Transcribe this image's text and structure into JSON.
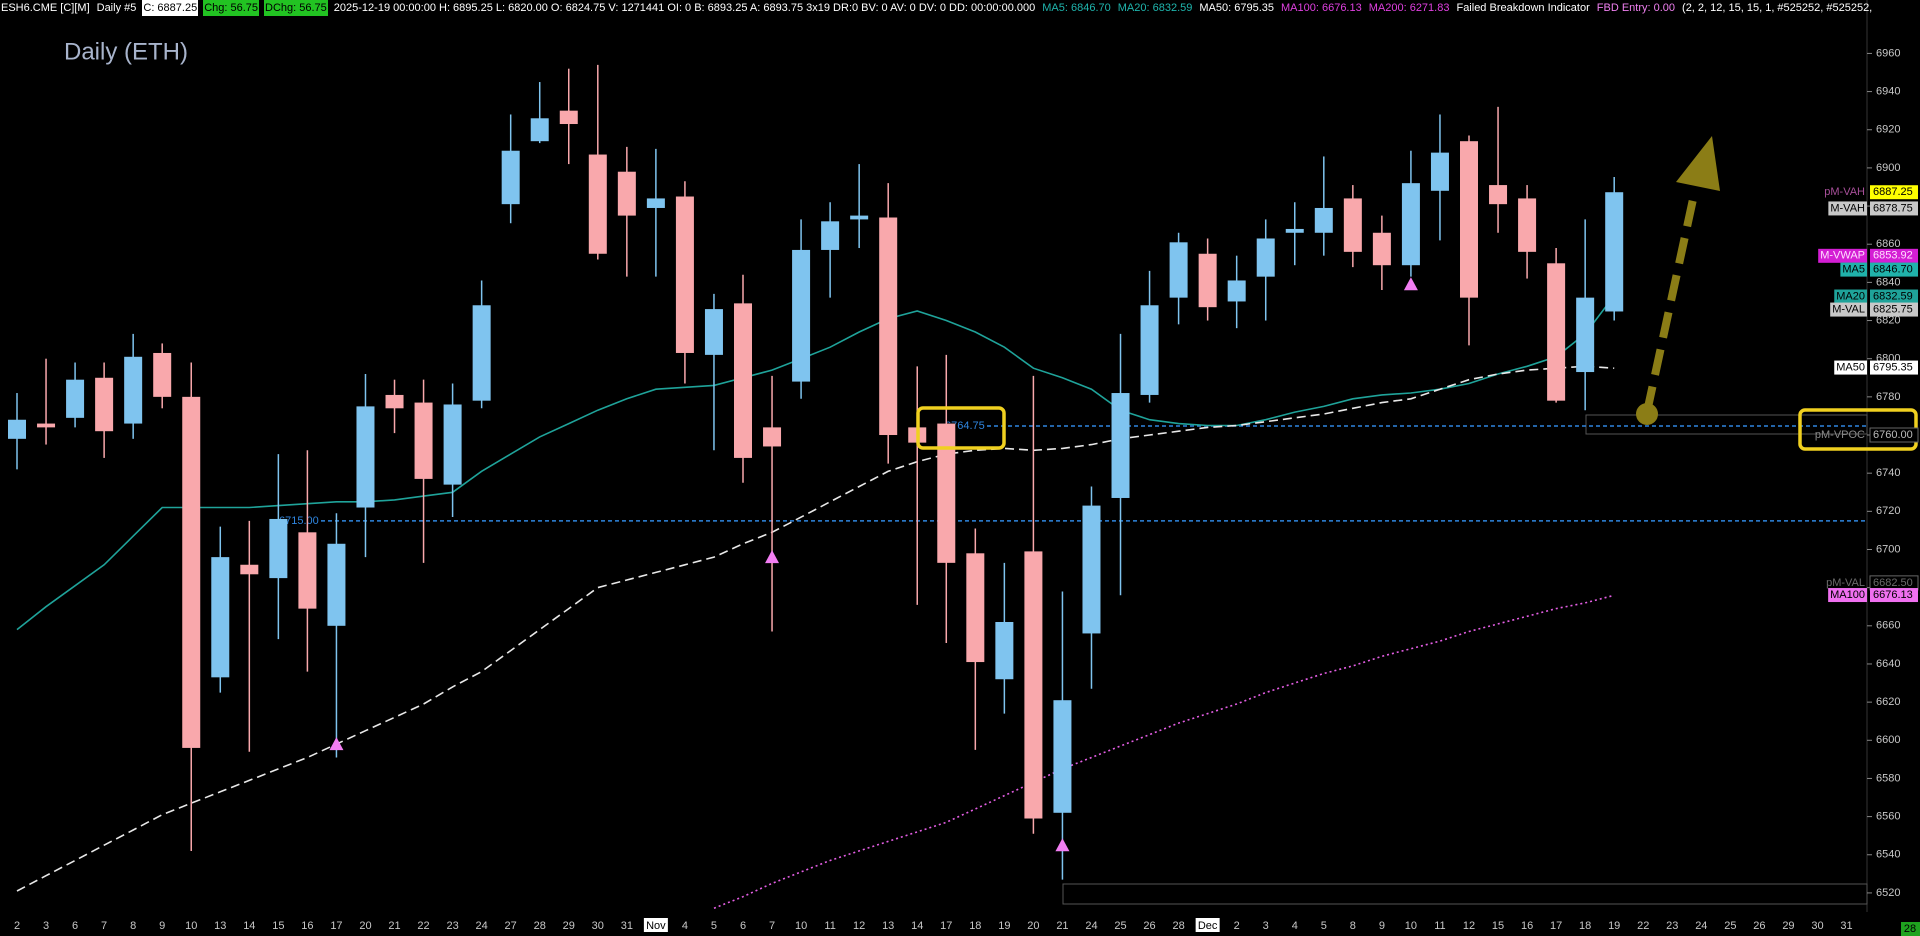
{
  "header": [
    {
      "text": "ESH6.CME [C][M]",
      "color": "#ffffff"
    },
    {
      "text": "Daily #5",
      "color": "#ffffff"
    },
    {
      "text": "C: 6887.25",
      "color": "#000000",
      "background": "#ffffff"
    },
    {
      "text": "Chg: 56.75",
      "color": "#000000",
      "background": "#22c322"
    },
    {
      "text": "DChg: 56.75",
      "color": "#000000",
      "background": "#22c322"
    },
    {
      "text": "2025-12-19 00:00:00 H: 6895.25 L: 6820.00 O: 6824.75 V: 1271441 OI: 0 B: 6893.25 A: 6893.75 3x19 DR:0 BV: 0 AV: 0 DV: 0 DD: 00:00:00.000",
      "color": "#ffffff"
    },
    {
      "text": "MA5: 6846.70",
      "color": "#1fb5ad"
    },
    {
      "text": "MA20: 6832.59",
      "color": "#1fb5ad"
    },
    {
      "text": "MA50: 6795.35",
      "color": "#ffffff"
    },
    {
      "text": "MA100: 6676.13",
      "color": "#e040e0"
    },
    {
      "text": "MA200: 6271.83",
      "color": "#e040e0"
    },
    {
      "text": "Failed Breakdown Indicator",
      "color": "#ffffff"
    },
    {
      "text": "FBD Entry: 0.00",
      "color": "#f080f0"
    },
    {
      "text": "(2, 2, 12, 15, 15, 1, #525252, #525252,",
      "color": "#ffffff"
    }
  ],
  "corner_label": "28",
  "chart_data": {
    "type": "candlestick",
    "title": "Daily (ETH)",
    "categories": [
      "2",
      "3",
      "6",
      "7",
      "8",
      "9",
      "10",
      "13",
      "14",
      "15",
      "16",
      "17",
      "20",
      "21",
      "22",
      "23",
      "24",
      "27",
      "28",
      "29",
      "30",
      "31",
      "Nov",
      "4",
      "5",
      "6",
      "7",
      "10",
      "11",
      "12",
      "13",
      "14",
      "17",
      "18",
      "19",
      "20",
      "21",
      "24",
      "25",
      "26",
      "28",
      "Dec",
      "2",
      "3",
      "4",
      "5",
      "8",
      "9",
      "10",
      "11",
      "12",
      "15",
      "16",
      "17",
      "18",
      "19",
      "22",
      "23",
      "24",
      "25",
      "26",
      "29",
      "30",
      "31"
    ],
    "open": [
      6758,
      6766,
      6769,
      6790,
      6766,
      6803,
      6780,
      6633,
      6692,
      6685,
      6709,
      6660,
      6722,
      6781,
      6777,
      6734,
      6778,
      6881,
      6914,
      6930,
      6907,
      6898,
      6879,
      6885,
      6802,
      6829,
      6764,
      6788,
      6857,
      6873,
      6874,
      6764,
      6766,
      6698,
      6632,
      6699,
      6562,
      6656,
      6727,
      6781,
      6832,
      6855,
      6830,
      6843,
      6866,
      6866,
      6884,
      6866,
      6849,
      6888,
      6914,
      6891,
      6884,
      6850,
      6793,
      6824.75,
      null,
      null,
      null,
      null,
      null,
      null,
      null,
      null
    ],
    "high": [
      6782,
      6800,
      6798,
      6798,
      6813,
      6808,
      6798,
      6712,
      6715,
      6750,
      6752,
      6719,
      6792,
      6789,
      6789,
      6787,
      6841,
      6928,
      6945,
      6952,
      6954,
      6911,
      6910,
      6893,
      6834,
      6844,
      6791,
      6873,
      6882,
      6902,
      6892,
      6796,
      6802,
      6711,
      6693,
      6791,
      6678,
      6733,
      6813,
      6846,
      6866,
      6863,
      6854,
      6873,
      6882,
      6906,
      6891,
      6875,
      6909,
      6928,
      6917,
      6932,
      6891,
      6858,
      6873,
      6895.25,
      null,
      null,
      null,
      null,
      null,
      null,
      null,
      null
    ],
    "low": [
      6742,
      6755,
      6764,
      6748,
      6758,
      6774,
      6542,
      6625,
      6594,
      6653,
      6636,
      6591,
      6696,
      6761,
      6693,
      6717,
      6774,
      6871,
      6913,
      6902,
      6852,
      6843,
      6843,
      6787,
      6752,
      6735,
      6657,
      6779,
      6832,
      6858,
      6745,
      6671,
      6651,
      6595,
      6614,
      6551,
      6527,
      6627,
      6676,
      6777,
      6818,
      6820,
      6816,
      6820,
      6849,
      6854,
      6848,
      6836,
      6843,
      6862,
      6807,
      6866,
      6842,
      6777,
      6773,
      6820,
      null,
      null,
      null,
      null,
      null,
      null,
      null,
      null
    ],
    "close": [
      6768,
      6764,
      6789,
      6762,
      6801,
      6780,
      6596,
      6696,
      6687,
      6716,
      6669,
      6703,
      6775,
      6774,
      6737,
      6776,
      6828,
      6909,
      6926,
      6923,
      6855,
      6875,
      6884,
      6803,
      6826,
      6748,
      6754,
      6857,
      6872,
      6875,
      6760,
      6756,
      6693,
      6641,
      6662,
      6559,
      6621,
      6723,
      6782,
      6828,
      6861,
      6827,
      6841,
      6863,
      6868,
      6879,
      6856,
      6849,
      6892,
      6908,
      6832,
      6881,
      6856,
      6778,
      6832,
      6887.25,
      null,
      null,
      null,
      null,
      null,
      null,
      null,
      null
    ],
    "up_color": "#7fc4ef",
    "down_color": "#f9a8ac",
    "series": [
      {
        "color": "#1fa39a",
        "style": "solid",
        "values": [
          6658,
          6670,
          6681,
          6692,
          6707,
          6722,
          6722,
          6722,
          6722,
          6723,
          6724,
          6725,
          6725,
          6726,
          6728,
          6730,
          6741,
          6750,
          6759,
          6766,
          6773,
          6779,
          6784,
          6785,
          6786,
          6790,
          6794,
          6800,
          6806,
          6814,
          6821,
          6825,
          6820,
          6814,
          6806,
          6795,
          6790,
          6784,
          6773,
          6768,
          6766,
          6765,
          6765,
          6768,
          6772,
          6775,
          6779,
          6781,
          6782,
          6784,
          6787,
          6792,
          6796,
          6801,
          6813,
          6833,
          null,
          null,
          null,
          null,
          null,
          null,
          null,
          null
        ]
      },
      {
        "color": "#e8e8e8",
        "style": "dashed",
        "values": [
          6521,
          6529,
          6537,
          6545,
          6553,
          6561,
          6567,
          6573,
          6579,
          6585,
          6591,
          6598,
          6605,
          6612,
          6619,
          6628,
          6636,
          6647,
          6658,
          6669,
          6680,
          6684,
          6688,
          6692,
          6696,
          6703,
          6709,
          6717,
          6725,
          6733,
          6741,
          6746,
          6750,
          6752,
          6753,
          6752,
          6753,
          6755,
          6758,
          6760,
          6762,
          6764,
          6765,
          6767,
          6769,
          6771,
          6774,
          6777,
          6779,
          6784,
          6789,
          6792,
          6794,
          6795,
          6796,
          6795,
          null,
          null,
          null,
          null,
          null,
          null,
          null,
          null
        ]
      },
      {
        "color": "#e45ee4",
        "style": "dotted",
        "values": [
          null,
          null,
          null,
          null,
          null,
          null,
          null,
          null,
          null,
          null,
          null,
          null,
          null,
          null,
          null,
          null,
          null,
          null,
          null,
          null,
          null,
          null,
          null,
          null,
          6512,
          6518,
          6525,
          6531,
          6537,
          6542,
          6547,
          6552,
          6557,
          6564,
          6571,
          6578,
          6585,
          6591,
          6597,
          6603,
          6609,
          6614,
          6619,
          6625,
          6630,
          6635,
          6639,
          6644,
          6648,
          6652,
          6657,
          6661,
          6665,
          6669,
          6672,
          6676,
          null,
          null,
          null,
          null,
          null,
          null,
          null,
          null
        ]
      }
    ],
    "signals": [
      null,
      null,
      null,
      null,
      null,
      null,
      null,
      null,
      null,
      null,
      null,
      6598,
      null,
      null,
      null,
      null,
      null,
      null,
      null,
      null,
      null,
      null,
      null,
      null,
      null,
      null,
      6696,
      null,
      null,
      null,
      null,
      null,
      null,
      null,
      null,
      null,
      6545,
      null,
      null,
      null,
      null,
      null,
      null,
      null,
      null,
      null,
      null,
      null,
      6839,
      null,
      null,
      null,
      null,
      null,
      null,
      null,
      null,
      null,
      null,
      null,
      null,
      null,
      null,
      null
    ],
    "signal_color": "#f27ef2",
    "levels": [
      {
        "value": 6764.75,
        "label": "6764.75",
        "color": "#2f86e0"
      },
      {
        "value": 6715,
        "label": "6715.00",
        "color": "#2f86e0"
      }
    ],
    "price_labels": [
      {
        "name": "pM-VAH",
        "value": 6887.25,
        "label": "6887.25",
        "name_color": "#a8509a",
        "color": "#000000",
        "bg": "#ffff00"
      },
      {
        "name": "M-VAH",
        "value": 6878.75,
        "label": "6878.75",
        "name_color": "#000000",
        "name_bg": "#c8c8c8",
        "color": "#000000",
        "bg": "#c8c8c8"
      },
      {
        "name": "M-VWAP",
        "value": 6853.92,
        "label": "6853.92",
        "name_color": "#ffe0ff",
        "name_bg": "#d41ed4",
        "color": "#ffe0ff",
        "bg": "#d41ed4"
      },
      {
        "name": "MA5",
        "value": 6846.7,
        "label": "6846.70",
        "name_color": "#000000",
        "name_bg": "#20b2aa",
        "color": "#000000",
        "bg": "#20b2aa"
      },
      {
        "name": "MA20",
        "value": 6832.59,
        "label": "6832.59",
        "name_color": "#000000",
        "name_bg": "#1fa39a",
        "color": "#000000",
        "bg": "#1fa39a"
      },
      {
        "name": "M-VAL",
        "value": 6825.75,
        "label": "6825.75",
        "name_color": "#000000",
        "name_bg": "#c8c8c8",
        "color": "#000000",
        "bg": "#c8c8c8"
      },
      {
        "name": "MA50",
        "value": 6795.35,
        "label": "6795.35",
        "name_color": "#000000",
        "name_bg": "#ffffff",
        "color": "#000000",
        "bg": "#ffffff"
      },
      {
        "name": "pM-VPOC",
        "value": 6760,
        "label": "6760.00",
        "name_color": "#8a8a8a",
        "color": "#bbbbbb",
        "bg": "#000000"
      },
      {
        "name": "pM-VAL",
        "value": 6682.5,
        "label": "6682.50",
        "name_color": "#6a6a6a",
        "color": "#6a6a6a",
        "bg": "#000000"
      },
      {
        "name": "MA100",
        "value": 6676.13,
        "label": "6676.13",
        "name_color": "#000000",
        "name_bg": "#f070f0",
        "color": "#000000",
        "bg": "#f070f0"
      }
    ],
    "ylim": [
      6510,
      6988
    ],
    "yticks": [
      6520,
      6540,
      6560,
      6580,
      6600,
      6620,
      6640,
      6660,
      6680,
      6700,
      6720,
      6740,
      6760,
      6780,
      6800,
      6820,
      6840,
      6860,
      6880,
      6900,
      6920,
      6940,
      6960
    ]
  }
}
